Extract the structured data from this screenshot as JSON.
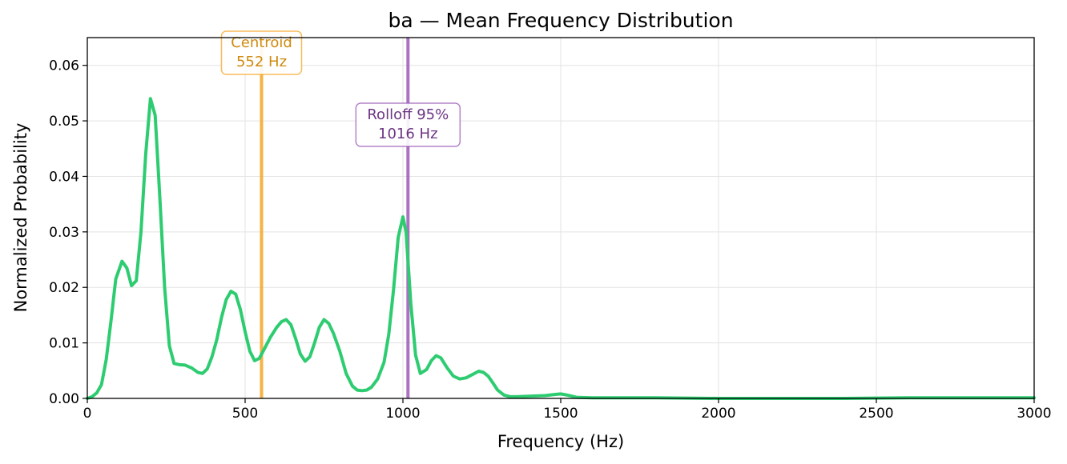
{
  "chart_data": {
    "type": "line",
    "title": "ba  —  Mean Frequency Distribution",
    "xlabel": "Frequency (Hz)",
    "ylabel": "Normalized Probability",
    "xlim": [
      0,
      3000
    ],
    "ylim": [
      0,
      0.065
    ],
    "xticks": [
      0,
      500,
      1000,
      1500,
      2000,
      2500,
      3000
    ],
    "yticks": [
      0.0,
      0.01,
      0.02,
      0.03,
      0.04,
      0.05,
      0.06
    ],
    "xtick_labels": [
      "0",
      "500",
      "1000",
      "1500",
      "2000",
      "2500",
      "3000"
    ],
    "ytick_labels": [
      "0.00",
      "0.01",
      "0.02",
      "0.03",
      "0.04",
      "0.05",
      "0.06"
    ],
    "grid": true,
    "series": [
      {
        "color": "#2ecc71",
        "x": [
          0,
          15,
          30,
          45,
          60,
          75,
          90,
          110,
          125,
          140,
          155,
          170,
          185,
          200,
          215,
          230,
          245,
          260,
          275,
          290,
          310,
          330,
          350,
          365,
          380,
          395,
          410,
          425,
          440,
          455,
          470,
          485,
          500,
          515,
          530,
          545,
          560,
          580,
          600,
          615,
          630,
          645,
          660,
          675,
          690,
          705,
          720,
          735,
          750,
          765,
          780,
          800,
          820,
          840,
          855,
          870,
          885,
          900,
          920,
          940,
          955,
          970,
          985,
          1000,
          1010,
          1025,
          1040,
          1055,
          1075,
          1090,
          1105,
          1120,
          1140,
          1160,
          1180,
          1200,
          1220,
          1240,
          1255,
          1270,
          1285,
          1300,
          1320,
          1340,
          1360,
          1400,
          1450,
          1480,
          1500,
          1520,
          1550,
          1600,
          1700,
          1800,
          2000,
          2200,
          2400,
          2600,
          2800,
          3000
        ],
        "y": [
          0.0,
          0.0003,
          0.001,
          0.0025,
          0.007,
          0.014,
          0.0215,
          0.0247,
          0.0235,
          0.0203,
          0.0212,
          0.03,
          0.044,
          0.054,
          0.051,
          0.036,
          0.02,
          0.0095,
          0.0063,
          0.0061,
          0.006,
          0.0055,
          0.0047,
          0.0045,
          0.0053,
          0.0075,
          0.0105,
          0.0145,
          0.0178,
          0.0193,
          0.0188,
          0.016,
          0.012,
          0.0085,
          0.0068,
          0.0072,
          0.0088,
          0.011,
          0.0128,
          0.0138,
          0.0142,
          0.0133,
          0.0108,
          0.008,
          0.0067,
          0.0075,
          0.01,
          0.0128,
          0.0142,
          0.0135,
          0.0117,
          0.0085,
          0.0045,
          0.0022,
          0.0015,
          0.0014,
          0.0015,
          0.002,
          0.0035,
          0.0065,
          0.0115,
          0.0195,
          0.029,
          0.0327,
          0.03,
          0.017,
          0.0078,
          0.0045,
          0.0052,
          0.0068,
          0.0077,
          0.0073,
          0.0055,
          0.004,
          0.0035,
          0.0037,
          0.0043,
          0.0049,
          0.0047,
          0.004,
          0.0028,
          0.0015,
          0.0006,
          0.0003,
          0.0003,
          0.0004,
          0.0005,
          0.0007,
          0.0008,
          0.0006,
          0.0002,
          0.0001,
          0.0001,
          0.0001,
          0.0,
          0.0,
          0.0,
          0.0001,
          0.0001,
          0.0001
        ]
      }
    ],
    "markers": [
      {
        "id": "centroid",
        "x": 552,
        "label_line1": "Centroid",
        "label_line2": "552 Hz",
        "color": "#f5a623",
        "text_color": "#d08a10"
      },
      {
        "id": "rolloff",
        "x": 1016,
        "label_line1": "Rolloff 95%",
        "label_line2": "1016 Hz",
        "color": "#9b59b6",
        "text_color": "#6c3483"
      }
    ]
  }
}
